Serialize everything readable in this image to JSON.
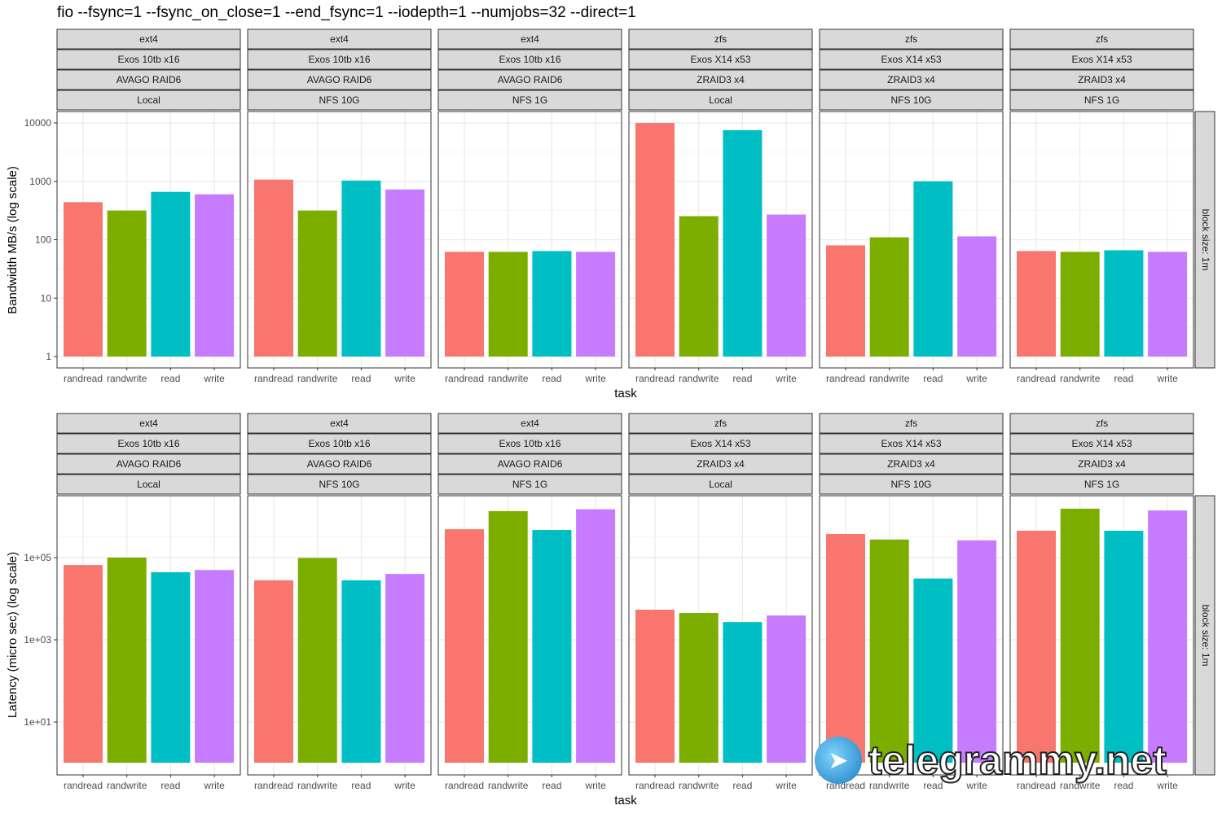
{
  "title": "fio --fsync=1 --fsync_on_close=1 --end_fsync=1 --iodepth=1 --numjobs=32 --direct=1",
  "watermark": "telegrammy.net",
  "colors": {
    "randread": "#F8766D",
    "randwrite": "#7CAE00",
    "read": "#00BFC4",
    "write": "#C77CFF",
    "strip": "#D9D9D9",
    "grid": "#EBEBEB"
  },
  "chart_data": [
    {
      "type": "bar",
      "title": "",
      "xlabel": "task",
      "ylabel": "Bandwidth MB/s (log scale)",
      "yscale": "log",
      "ylim": [
        1,
        10000
      ],
      "yticks": [
        1,
        10,
        100,
        1000,
        10000
      ],
      "ytick_labels": [
        "1",
        "10",
        "100",
        "1000",
        "10000"
      ],
      "right_strip": "block size: 1m",
      "categories": [
        "randread",
        "randwrite",
        "read",
        "write"
      ],
      "panels": [
        {
          "strips": [
            "ext4",
            "Exos 10tb x16",
            "AVAGO RAID6",
            "Local"
          ],
          "values": [
            440,
            316,
            660,
            600
          ]
        },
        {
          "strips": [
            "ext4",
            "Exos 10tb x16",
            "AVAGO RAID6",
            "NFS 10G"
          ],
          "values": [
            1070,
            316,
            1030,
            725
          ]
        },
        {
          "strips": [
            "ext4",
            "Exos 10tb x16",
            "AVAGO RAID6",
            "NFS 1G"
          ],
          "values": [
            62,
            62,
            64,
            62
          ]
        },
        {
          "strips": [
            "zfs",
            "Exos X14 x53",
            "ZRAID3 x4",
            "Local"
          ],
          "values": [
            10000,
            253,
            7500,
            270
          ]
        },
        {
          "strips": [
            "zfs",
            "Exos X14 x53",
            "ZRAID3 x4",
            "NFS 10G"
          ],
          "values": [
            80,
            110,
            1000,
            114
          ]
        },
        {
          "strips": [
            "zfs",
            "Exos X14 x53",
            "ZRAID3 x4",
            "NFS 1G"
          ],
          "values": [
            64,
            62,
            66,
            62
          ]
        }
      ]
    },
    {
      "type": "bar",
      "title": "",
      "xlabel": "task",
      "ylabel": "Latency (micro sec) (log scale)",
      "yscale": "log",
      "ylim": [
        1,
        3000000
      ],
      "yticks": [
        10,
        1000,
        100000
      ],
      "ytick_labels": [
        "1e+01",
        "1e+03",
        "1e+05"
      ],
      "right_strip": "block size: 1m",
      "categories": [
        "randread",
        "randwrite",
        "read",
        "write"
      ],
      "panels": [
        {
          "strips": [
            "ext4",
            "Exos 10tb x16",
            "AVAGO RAID6",
            "Local"
          ],
          "values": [
            66000,
            100000,
            44000,
            50000
          ]
        },
        {
          "strips": [
            "ext4",
            "Exos 10tb x16",
            "AVAGO RAID6",
            "NFS 10G"
          ],
          "values": [
            28000,
            98000,
            28000,
            40000
          ]
        },
        {
          "strips": [
            "ext4",
            "Exos 10tb x16",
            "AVAGO RAID6",
            "NFS 1G"
          ],
          "values": [
            490000,
            1350000,
            470000,
            1500000
          ]
        },
        {
          "strips": [
            "zfs",
            "Exos X14 x53",
            "ZRAID3 x4",
            "Local"
          ],
          "values": [
            5400,
            4500,
            2700,
            3900
          ]
        },
        {
          "strips": [
            "zfs",
            "Exos X14 x53",
            "ZRAID3 x4",
            "NFS 10G"
          ],
          "values": [
            375000,
            275000,
            31000,
            263000
          ]
        },
        {
          "strips": [
            "zfs",
            "Exos X14 x53",
            "ZRAID3 x4",
            "NFS 1G"
          ],
          "values": [
            450000,
            1550000,
            450000,
            1400000
          ]
        }
      ]
    }
  ]
}
